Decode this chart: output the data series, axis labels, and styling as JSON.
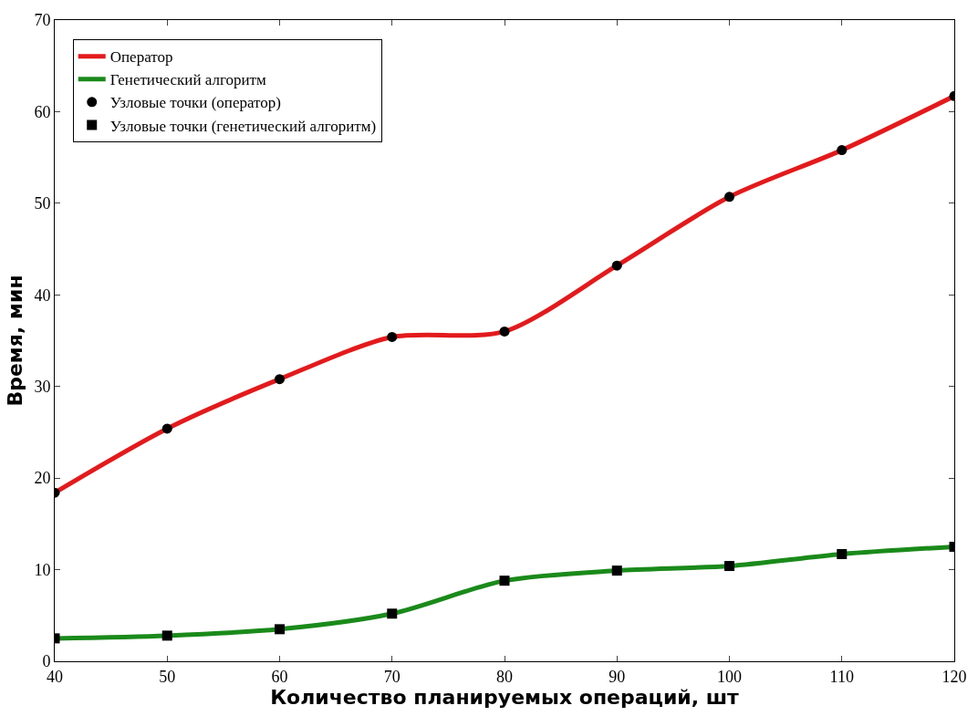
{
  "chart_data": {
    "type": "line",
    "xlabel": "Количество планируемых операций, шт",
    "ylabel": "Время, мин",
    "x": [
      40,
      50,
      60,
      70,
      80,
      90,
      100,
      110,
      120
    ],
    "series": [
      {
        "name": "Оператор",
        "color": "#e31a1c",
        "marker": "none",
        "values": [
          18.4,
          25.4,
          30.8,
          35.4,
          36.0,
          43.2,
          50.7,
          55.8,
          61.7
        ]
      },
      {
        "name": "Генетический алгоритм",
        "color": "#1a8a1a",
        "marker": "none",
        "values": [
          2.5,
          2.8,
          3.5,
          5.2,
          8.8,
          9.9,
          10.4,
          11.7,
          12.5
        ]
      },
      {
        "name": "Узловые точки (оператор)",
        "type": "scatter",
        "color": "#000000",
        "marker": "circle",
        "values": [
          18.4,
          25.4,
          30.8,
          35.4,
          36.0,
          43.2,
          50.7,
          55.8,
          61.7
        ]
      },
      {
        "name": "Узловые точки (генетический алгоритм)",
        "type": "scatter",
        "color": "#000000",
        "marker": "square",
        "values": [
          2.5,
          2.8,
          3.5,
          5.2,
          8.8,
          9.9,
          10.4,
          11.7,
          12.5
        ]
      }
    ],
    "xlim": [
      40,
      120
    ],
    "xticks": [
      40,
      50,
      60,
      70,
      80,
      90,
      100,
      110,
      120
    ],
    "ylim": [
      0,
      70
    ],
    "yticks": [
      0,
      10,
      20,
      30,
      40,
      50,
      60,
      70
    ],
    "legend": "top left"
  }
}
